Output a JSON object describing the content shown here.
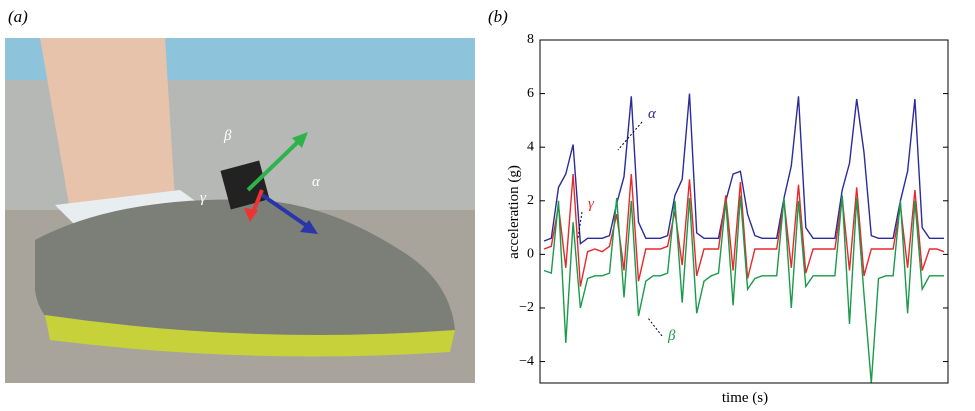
{
  "photo": {
    "panel_label": "(a)",
    "arrow_labels": [
      "β",
      "γ",
      "α"
    ]
  },
  "chart_data": {
    "type": "line",
    "panel_label": "(b)",
    "x_label": "time (s)",
    "y_label": "acceleration (g)",
    "ylim": [
      -4.8,
      8
    ],
    "yticks": [
      {
        "value": -4,
        "label": "−4"
      },
      {
        "value": -2,
        "label": "−2"
      },
      0,
      2,
      4,
      6,
      8
    ],
    "series": [
      {
        "name": "α",
        "color": "#2b2b9b",
        "values": [
          0.5,
          0.6,
          2.5,
          3.0,
          4.1,
          0.4,
          0.6,
          0.6,
          0.6,
          0.7,
          1.9,
          2.9,
          5.9,
          1.2,
          0.6,
          0.6,
          0.6,
          0.7,
          2.2,
          2.8,
          6.0,
          0.8,
          0.6,
          0.6,
          0.6,
          2.0,
          3.0,
          3.1,
          1.5,
          0.7,
          0.6,
          0.6,
          0.6,
          2.1,
          3.3,
          5.9,
          1.0,
          0.6,
          0.6,
          0.6,
          0.6,
          2.4,
          3.4,
          5.8,
          3.8,
          0.7,
          0.6,
          0.6,
          0.6,
          2.0,
          3.1,
          5.8,
          1.0,
          0.6,
          0.6,
          0.6
        ]
      },
      {
        "name": "γ",
        "color": "#e8282b",
        "values": [
          0.2,
          0.3,
          1.8,
          -0.5,
          3.0,
          -1.2,
          0.1,
          0.2,
          0.1,
          0.3,
          1.5,
          -0.6,
          3.0,
          -1.0,
          0.2,
          0.2,
          0.2,
          0.3,
          1.6,
          -0.4,
          2.8,
          -0.8,
          0.2,
          0.2,
          0.2,
          2.2,
          -0.6,
          2.7,
          -0.9,
          0.2,
          0.2,
          0.2,
          0.2,
          2.0,
          -0.5,
          2.6,
          -0.7,
          0.2,
          0.2,
          0.2,
          0.2,
          2.1,
          -0.6,
          2.5,
          -0.8,
          0.2,
          0.2,
          0.2,
          0.2,
          1.8,
          -0.5,
          2.4,
          -0.6,
          0.2,
          0.2,
          0.1
        ]
      },
      {
        "name": "β",
        "color": "#1a9a4a",
        "values": [
          -0.6,
          -0.7,
          2.0,
          -3.3,
          1.2,
          -2.0,
          -0.9,
          -0.8,
          -0.8,
          -0.7,
          2.1,
          -1.6,
          2.0,
          -2.3,
          -1.0,
          -0.8,
          -0.8,
          -0.7,
          2.0,
          -1.8,
          2.1,
          -2.2,
          -1.0,
          -0.8,
          -0.7,
          2.0,
          -1.9,
          2.2,
          -1.3,
          -0.9,
          -0.8,
          -0.8,
          -0.8,
          2.1,
          -2.0,
          2.0,
          -1.2,
          -0.8,
          -0.8,
          -0.8,
          -0.8,
          2.2,
          -2.6,
          2.1,
          -1.5,
          -4.8,
          -0.9,
          -0.8,
          -0.8,
          2.0,
          -2.2,
          2.0,
          -1.3,
          -0.8,
          -0.8,
          -0.8
        ]
      }
    ]
  }
}
